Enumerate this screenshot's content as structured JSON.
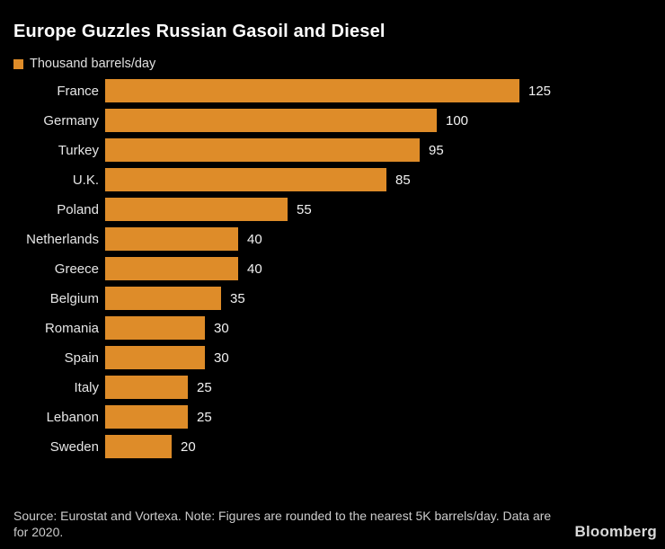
{
  "header": {
    "title": "Europe Guzzles Russian Gasoil and Diesel",
    "legend_label": "Thousand barrels/day"
  },
  "chart_data": {
    "type": "bar",
    "orientation": "horizontal",
    "title": "Europe Guzzles Russian Gasoil and Diesel",
    "legend": [
      "Thousand barrels/day"
    ],
    "legend_position": "top-left",
    "categories": [
      "France",
      "Germany",
      "Turkey",
      "U.K.",
      "Poland",
      "Netherlands",
      "Greece",
      "Belgium",
      "Romania",
      "Spain",
      "Italy",
      "Lebanon",
      "Sweden"
    ],
    "values": [
      125,
      100,
      95,
      85,
      55,
      40,
      40,
      35,
      30,
      30,
      25,
      25,
      20
    ],
    "xlabel": "",
    "ylabel": "",
    "xlim": [
      0,
      125
    ],
    "grid": false,
    "value_labels_shown": true,
    "bar_color": "#de8c29",
    "background_color": "#000000",
    "text_color": "#ffffff"
  },
  "footer": {
    "source_note": "Source: Eurostat and Vortexa. Note: Figures are rounded to the nearest 5K barrels/day. Data are for 2020.",
    "brand": "Bloomberg"
  }
}
